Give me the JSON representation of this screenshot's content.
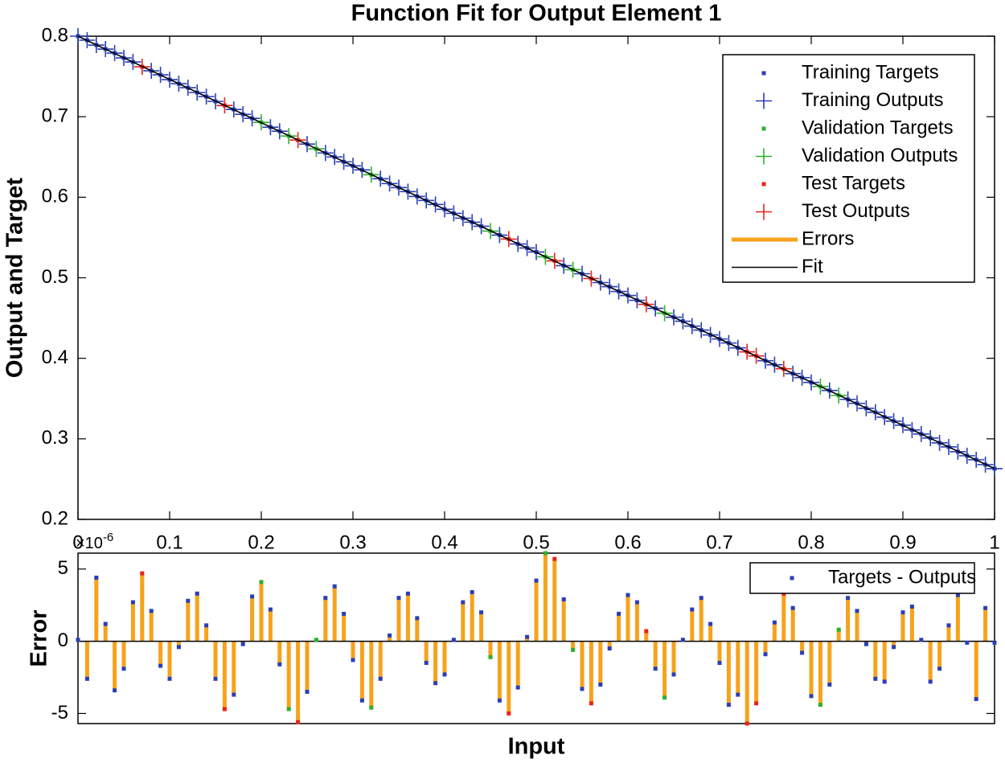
{
  "chart_data": [
    {
      "type": "line",
      "title": "Function Fit for Output Element 1",
      "ylabel": "Output and Target",
      "xlim": [
        0,
        1
      ],
      "xticks": [
        0,
        0.1,
        0.2,
        0.3,
        0.4,
        0.5,
        0.6,
        0.7,
        0.8,
        0.9,
        1
      ],
      "ylim": [
        0.2,
        0.8
      ],
      "yticks": [
        0.2,
        0.3,
        0.4,
        0.5,
        0.6,
        0.7,
        0.8
      ],
      "legend": "upper right",
      "series": [
        {
          "name": "Training Targets",
          "color": "#2a3fb5",
          "marker": "square",
          "x": [
            0,
            0.01,
            0.02,
            0.03,
            0.04,
            0.05,
            0.06,
            0.08,
            0.09,
            0.1,
            0.11,
            0.12,
            0.13,
            0.14,
            0.15,
            0.17,
            0.18,
            0.19,
            0.21,
            0.22,
            0.25,
            0.27,
            0.28,
            0.29,
            0.3,
            0.31,
            0.33,
            0.34,
            0.35,
            0.36,
            0.37,
            0.38,
            0.39,
            0.4,
            0.41,
            0.42,
            0.43,
            0.44,
            0.46,
            0.48,
            0.49,
            0.5,
            0.53,
            0.55,
            0.57,
            0.58,
            0.59,
            0.6,
            0.61,
            0.63,
            0.65,
            0.66,
            0.67,
            0.68,
            0.69,
            0.7,
            0.71,
            0.72,
            0.75,
            0.76,
            0.78,
            0.79,
            0.8,
            0.82,
            0.84,
            0.85,
            0.86,
            0.87,
            0.88,
            0.89,
            0.9,
            0.91,
            0.92,
            0.93,
            0.94,
            0.95,
            0.96,
            0.97,
            0.98,
            0.99,
            1
          ],
          "values": [
            0.8,
            0.795,
            0.789,
            0.784,
            0.779,
            0.773,
            0.768,
            0.757,
            0.752,
            0.746,
            0.741,
            0.736,
            0.73,
            0.725,
            0.719,
            0.709,
            0.703,
            0.698,
            0.687,
            0.682,
            0.666,
            0.655,
            0.65,
            0.644,
            0.639,
            0.634,
            0.623,
            0.617,
            0.612,
            0.607,
            0.601,
            0.596,
            0.591,
            0.585,
            0.58,
            0.574,
            0.569,
            0.564,
            0.553,
            0.542,
            0.537,
            0.532,
            0.515,
            0.505,
            0.494,
            0.489,
            0.483,
            0.478,
            0.472,
            0.462,
            0.451,
            0.446,
            0.44,
            0.435,
            0.429,
            0.424,
            0.419,
            0.413,
            0.397,
            0.392,
            0.381,
            0.376,
            0.37,
            0.36,
            0.349,
            0.344,
            0.338,
            0.333,
            0.327,
            0.322,
            0.317,
            0.311,
            0.306,
            0.301,
            0.295,
            0.29,
            0.284,
            0.279,
            0.274,
            0.268,
            0.263
          ]
        },
        {
          "name": "Training Outputs",
          "color": "#2a3fb5",
          "marker": "plus",
          "x": [
            0,
            0.01,
            0.02,
            0.03,
            0.04,
            0.05,
            0.06,
            0.08,
            0.09,
            0.1,
            0.11,
            0.12,
            0.13,
            0.14,
            0.15,
            0.17,
            0.18,
            0.19,
            0.21,
            0.22,
            0.25,
            0.27,
            0.28,
            0.29,
            0.3,
            0.31,
            0.33,
            0.34,
            0.35,
            0.36,
            0.37,
            0.38,
            0.39,
            0.4,
            0.41,
            0.42,
            0.43,
            0.44,
            0.46,
            0.48,
            0.49,
            0.5,
            0.53,
            0.55,
            0.57,
            0.58,
            0.59,
            0.6,
            0.61,
            0.63,
            0.65,
            0.66,
            0.67,
            0.68,
            0.69,
            0.7,
            0.71,
            0.72,
            0.75,
            0.76,
            0.78,
            0.79,
            0.8,
            0.82,
            0.84,
            0.85,
            0.86,
            0.87,
            0.88,
            0.89,
            0.9,
            0.91,
            0.92,
            0.93,
            0.94,
            0.95,
            0.96,
            0.97,
            0.98,
            0.99,
            1
          ],
          "values": [
            0.8,
            0.795,
            0.789,
            0.784,
            0.779,
            0.773,
            0.768,
            0.757,
            0.752,
            0.746,
            0.741,
            0.736,
            0.73,
            0.725,
            0.719,
            0.709,
            0.703,
            0.698,
            0.687,
            0.682,
            0.666,
            0.655,
            0.65,
            0.644,
            0.639,
            0.634,
            0.623,
            0.617,
            0.612,
            0.607,
            0.601,
            0.596,
            0.591,
            0.585,
            0.58,
            0.574,
            0.569,
            0.564,
            0.553,
            0.542,
            0.537,
            0.532,
            0.515,
            0.505,
            0.494,
            0.489,
            0.483,
            0.478,
            0.472,
            0.462,
            0.451,
            0.446,
            0.44,
            0.435,
            0.429,
            0.424,
            0.419,
            0.413,
            0.397,
            0.392,
            0.381,
            0.376,
            0.37,
            0.36,
            0.349,
            0.344,
            0.338,
            0.333,
            0.327,
            0.322,
            0.317,
            0.311,
            0.306,
            0.301,
            0.295,
            0.29,
            0.284,
            0.279,
            0.274,
            0.268,
            0.263
          ]
        },
        {
          "name": "Validation Targets",
          "color": "#2bb12b",
          "marker": "square",
          "x": [
            0.2,
            0.23,
            0.26,
            0.32,
            0.45,
            0.51,
            0.54,
            0.64,
            0.81,
            0.83
          ],
          "values": [
            0.693,
            0.676,
            0.66,
            0.628,
            0.558,
            0.526,
            0.51,
            0.456,
            0.365,
            0.354
          ]
        },
        {
          "name": "Validation Outputs",
          "color": "#2bb12b",
          "marker": "plus",
          "x": [
            0.2,
            0.23,
            0.26,
            0.32,
            0.45,
            0.51,
            0.54,
            0.64,
            0.81,
            0.83
          ],
          "values": [
            0.693,
            0.676,
            0.66,
            0.628,
            0.558,
            0.526,
            0.51,
            0.456,
            0.365,
            0.354
          ]
        },
        {
          "name": "Test Targets",
          "color": "#e8231a",
          "marker": "square",
          "x": [
            0.07,
            0.16,
            0.24,
            0.47,
            0.52,
            0.56,
            0.62,
            0.73,
            0.74,
            0.77
          ],
          "values": [
            0.762,
            0.714,
            0.671,
            0.548,
            0.521,
            0.499,
            0.467,
            0.408,
            0.403,
            0.387
          ]
        },
        {
          "name": "Test Outputs",
          "color": "#e8231a",
          "marker": "plus",
          "x": [
            0.07,
            0.16,
            0.24,
            0.47,
            0.52,
            0.56,
            0.62,
            0.73,
            0.74,
            0.77
          ],
          "values": [
            0.762,
            0.714,
            0.671,
            0.548,
            0.521,
            0.499,
            0.467,
            0.408,
            0.403,
            0.387
          ]
        },
        {
          "name": "Errors",
          "color": "#f7a21b",
          "marker": "bar"
        },
        {
          "name": "Fit",
          "color": "#000000",
          "marker": "line",
          "x": [
            0,
            1
          ],
          "values": [
            0.8,
            0.263
          ]
        }
      ]
    },
    {
      "type": "stem",
      "xlabel": "Input",
      "ylabel": "Error",
      "y_multiplier": {
        "base": "×10",
        "exponent": "-6"
      },
      "xlim": [
        0,
        1
      ],
      "ylim": [
        -5.7,
        6.1
      ],
      "yticks": [
        -5,
        0,
        5
      ],
      "legend": "upper right",
      "stem_color": "#f7a21b",
      "series": [
        {
          "name": "Targets - Outputs",
          "color": "#2a3fb5",
          "x": [
            0,
            0.01,
            0.02,
            0.03,
            0.04,
            0.05,
            0.06,
            0.08,
            0.09,
            0.1,
            0.11,
            0.12,
            0.13,
            0.14,
            0.15,
            0.17,
            0.18,
            0.19,
            0.21,
            0.22,
            0.25,
            0.27,
            0.28,
            0.29,
            0.3,
            0.31,
            0.33,
            0.34,
            0.35,
            0.36,
            0.37,
            0.38,
            0.39,
            0.4,
            0.41,
            0.42,
            0.43,
            0.44,
            0.46,
            0.48,
            0.49,
            0.5,
            0.53,
            0.55,
            0.57,
            0.58,
            0.59,
            0.6,
            0.61,
            0.63,
            0.65,
            0.66,
            0.67,
            0.68,
            0.69,
            0.7,
            0.71,
            0.72,
            0.75,
            0.76,
            0.78,
            0.79,
            0.8,
            0.82,
            0.84,
            0.85,
            0.86,
            0.87,
            0.88,
            0.89,
            0.9,
            0.91,
            0.92,
            0.93,
            0.94,
            0.95,
            0.96,
            0.97,
            0.98,
            0.99,
            1
          ],
          "values": [
            0.1,
            -2.6,
            4.4,
            1.2,
            -3.4,
            -1.9,
            2.7,
            2.1,
            -1.7,
            -2.6,
            -0.4,
            2.8,
            3.3,
            1.1,
            -2.6,
            -3.7,
            -0.2,
            3.1,
            2.2,
            -1.6,
            -3.5,
            3.0,
            3.8,
            1.9,
            -1.3,
            -4.1,
            -2.6,
            0.4,
            3.0,
            3.3,
            1.6,
            -1.5,
            -2.9,
            -2.3,
            0.1,
            2.7,
            3.4,
            2.0,
            -4.1,
            -3.2,
            0.3,
            4.2,
            2.9,
            -3.3,
            -3.0,
            -0.5,
            1.9,
            3.2,
            2.7,
            -1.9,
            -2.3,
            0.1,
            2.2,
            3.0,
            1.2,
            -1.5,
            -4.4,
            -3.7,
            -0.9,
            1.3,
            2.3,
            -0.8,
            -3.8,
            -3.0,
            3.0,
            2.1,
            -0.2,
            -2.6,
            -2.8,
            -0.4,
            2.0,
            2.4,
            0.1,
            -2.8,
            -1.9,
            1.1,
            3.2,
            -0.1,
            -4.0,
            2.3,
            -0.1
          ]
        },
        {
          "color": "#2bb12b",
          "x": [
            0.2,
            0.23,
            0.26,
            0.32,
            0.45,
            0.51,
            0.54,
            0.64,
            0.81,
            0.83
          ],
          "values": [
            4.1,
            -4.7,
            0.1,
            -4.6,
            -1.1,
            6.1,
            -0.6,
            -3.9,
            -4.4,
            0.8
          ]
        },
        {
          "color": "#e8231a",
          "x": [
            0.07,
            0.16,
            0.24,
            0.47,
            0.52,
            0.56,
            0.62,
            0.73,
            0.74,
            0.77
          ],
          "values": [
            4.7,
            -4.7,
            -5.6,
            -5.0,
            5.7,
            -4.3,
            0.7,
            -5.7,
            -4.3,
            3.3
          ]
        }
      ]
    }
  ]
}
